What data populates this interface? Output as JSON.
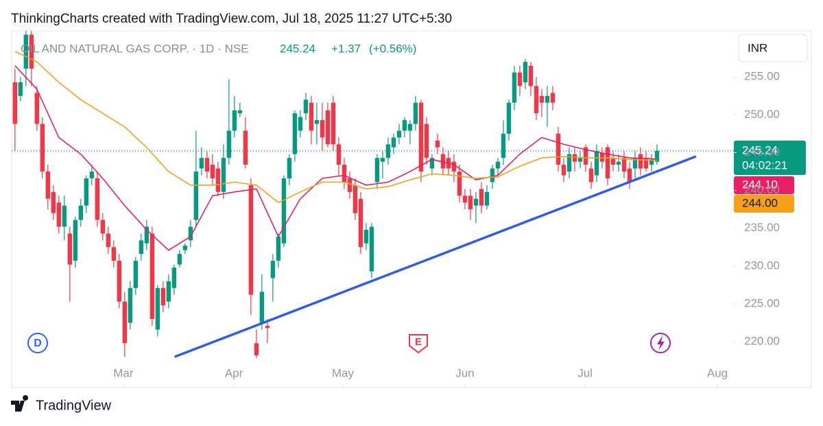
{
  "header": "ThinkingCharts created with TradingView.com, Jul 18, 2025 11:27 UTC+5:30",
  "footer": "TradingView",
  "chart_data": {
    "type": "candlestick",
    "symbol": "OIL AND NATURAL GAS CORP. · 1D · NSE",
    "last_price": 245.24,
    "change": {
      "value": 1.37,
      "label": "+1.37"
    },
    "change_pct": {
      "value": 0.56,
      "label": "(+0.56%)"
    },
    "currency": "INR",
    "countdown": "04:02:21",
    "events": [
      "D",
      "E"
    ],
    "up_color": "#089981",
    "down_color": "#f23645",
    "xlim": [
      -0.6,
      131
    ],
    "xticks": [
      {
        "value": 19.75,
        "label": "Mar"
      },
      {
        "value": 39.9,
        "label": "Apr"
      },
      {
        "value": 59.75,
        "label": "May"
      },
      {
        "value": 82,
        "label": "Jun"
      },
      {
        "value": 103.9,
        "label": "Jul"
      },
      {
        "value": 128,
        "label": "Aug"
      }
    ],
    "ylim": [
      216.2,
      261.1
    ],
    "yticks": [
      {
        "value": 220,
        "label": "220.00"
      },
      {
        "value": 225,
        "label": "225.00"
      },
      {
        "value": 230,
        "label": "230.00"
      },
      {
        "value": 235,
        "label": "235.00"
      },
      {
        "value": 240,
        "label": "240.00"
      },
      {
        "value": 245,
        "label": "245.00"
      },
      {
        "value": 250,
        "label": "250.00"
      },
      {
        "value": 255,
        "label": "255.00"
      }
    ],
    "open": [
      254.3,
      252.5,
      256.1,
      260.6,
      252.9,
      248.8,
      242.5,
      239.8,
      238.4,
      235.2,
      234.3,
      230.7,
      236.1,
      238.0,
      241.6,
      241.6,
      236.1,
      234.3,
      232.5,
      230.7,
      225.3,
      222.5,
      227.1,
      231.6,
      233.0,
      234.3,
      221.6,
      227.1,
      225.3,
      227.1,
      230.2,
      232.1,
      233.4,
      236.1,
      242.9,
      244.3,
      243.4,
      242.9,
      239.8,
      244.3,
      247.9,
      250.2,
      247.9,
      240.7,
      219.8,
      222.5,
      222.1,
      228.4,
      230.7,
      233.0,
      241.6,
      244.8,
      247.9,
      250.2,
      251.6,
      248.8,
      249.3,
      250.6,
      251.6,
      246.1,
      243.4,
      241.6,
      240.7,
      238.9,
      233.0,
      229.3,
      241.1,
      243.8,
      244.3,
      245.7,
      247.0,
      247.9,
      247.9,
      248.8,
      251.6,
      248.8,
      242.9,
      246.6,
      244.8,
      244.3,
      243.8,
      242.5,
      239.3,
      239.3,
      238.0,
      240.2,
      238.0,
      241.1,
      242.9,
      244.3,
      247.5,
      251.6,
      255.6,
      254.3,
      256.5,
      253.8,
      252.5,
      251.6,
      252.9,
      247.5,
      243.4,
      242.5,
      244.8,
      243.8,
      245.7,
      242.9,
      242.0,
      245.0,
      245.7,
      244.3,
      243.4,
      244.3,
      242.9,
      242.9,
      244.8,
      244.3,
      243.4,
      243.8
    ],
    "high": [
      256.1,
      255.0,
      261.1,
      261.1,
      253.8,
      249.7,
      243.4,
      240.7,
      239.3,
      239.3,
      235.2,
      236.5,
      238.9,
      242.0,
      243.4,
      242.5,
      237.0,
      235.2,
      233.4,
      231.6,
      226.6,
      228.0,
      231.2,
      234.3,
      236.1,
      235.2,
      227.5,
      228.0,
      228.9,
      230.2,
      232.1,
      233.0,
      236.1,
      247.9,
      245.7,
      245.2,
      244.8,
      243.8,
      246.1,
      254.7,
      252.5,
      251.6,
      249.7,
      241.6,
      221.6,
      228.9,
      223.0,
      231.6,
      234.3,
      242.0,
      244.8,
      250.6,
      250.6,
      252.9,
      252.5,
      251.6,
      251.6,
      251.6,
      252.5,
      247.0,
      244.3,
      242.5,
      241.6,
      239.8,
      235.7,
      235.7,
      244.8,
      245.2,
      247.0,
      247.5,
      248.8,
      249.7,
      249.3,
      252.5,
      252.0,
      249.7,
      244.8,
      247.5,
      245.7,
      245.2,
      244.8,
      243.4,
      240.2,
      240.2,
      239.8,
      241.1,
      240.7,
      243.4,
      244.3,
      249.3,
      252.0,
      256.5,
      256.5,
      257.4,
      257.0,
      255.0,
      253.4,
      253.8,
      253.8,
      248.4,
      244.3,
      245.7,
      245.7,
      245.2,
      246.1,
      243.8,
      246.1,
      245.7,
      246.1,
      245.2,
      244.8,
      245.2,
      243.8,
      245.2,
      245.7,
      245.2,
      244.8,
      246.1
    ],
    "low": [
      245.2,
      251.8,
      253.8,
      253.8,
      247.9,
      241.6,
      237.5,
      236.1,
      234.3,
      233.4,
      225.3,
      229.8,
      235.2,
      237.0,
      240.7,
      235.2,
      233.4,
      231.6,
      229.8,
      224.4,
      218.0,
      221.6,
      226.2,
      230.7,
      232.1,
      222.1,
      220.7,
      223.9,
      224.4,
      226.2,
      229.8,
      231.6,
      232.5,
      235.2,
      242.0,
      241.6,
      240.7,
      239.3,
      238.9,
      243.4,
      247.0,
      249.7,
      242.9,
      223.5,
      217.8,
      221.6,
      219.8,
      225.3,
      229.8,
      232.5,
      240.7,
      243.8,
      247.0,
      249.3,
      246.1,
      246.1,
      245.2,
      245.7,
      245.2,
      242.0,
      240.2,
      238.9,
      236.1,
      231.6,
      232.1,
      228.4,
      240.2,
      241.6,
      243.4,
      244.8,
      246.1,
      247.0,
      246.1,
      247.9,
      241.1,
      243.4,
      242.0,
      244.8,
      242.0,
      242.0,
      241.1,
      238.4,
      237.5,
      236.1,
      235.7,
      237.0,
      237.5,
      240.2,
      242.0,
      243.4,
      246.6,
      250.6,
      252.5,
      253.4,
      252.5,
      249.3,
      249.7,
      248.4,
      250.6,
      242.5,
      241.1,
      241.6,
      242.5,
      242.9,
      242.5,
      240.2,
      241.1,
      242.9,
      240.7,
      242.5,
      242.5,
      241.6,
      240.2,
      241.6,
      242.0,
      242.5,
      242.5,
      243.4
    ],
    "close": [
      248.8,
      254.3,
      260.6,
      256.1,
      248.8,
      242.5,
      238.9,
      237.0,
      235.2,
      238.0,
      230.2,
      236.1,
      238.0,
      241.6,
      242.5,
      236.1,
      234.3,
      232.5,
      230.7,
      225.3,
      219.8,
      227.1,
      230.7,
      233.4,
      235.2,
      223.0,
      227.1,
      224.8,
      228.0,
      229.8,
      231.6,
      232.7,
      235.2,
      242.5,
      244.3,
      242.5,
      241.6,
      239.8,
      244.3,
      247.9,
      250.6,
      250.6,
      243.4,
      226.2,
      218.2,
      226.6,
      221.8,
      230.7,
      233.9,
      241.6,
      244.3,
      250.2,
      249.7,
      252.0,
      247.9,
      249.3,
      247.0,
      246.1,
      246.1,
      243.4,
      241.1,
      239.8,
      237.0,
      232.5,
      234.8,
      235.2,
      244.3,
      244.3,
      246.1,
      247.0,
      247.9,
      249.3,
      248.8,
      251.6,
      242.5,
      244.3,
      244.3,
      245.7,
      242.9,
      242.9,
      242.5,
      239.3,
      238.4,
      237.5,
      238.9,
      238.0,
      239.8,
      242.9,
      243.8,
      247.5,
      251.6,
      255.6,
      253.8,
      257.0,
      253.8,
      250.2,
      251.6,
      252.5,
      251.6,
      243.4,
      242.0,
      244.8,
      243.8,
      244.3,
      243.4,
      241.1,
      245.2,
      243.8,
      241.6,
      243.4,
      243.8,
      242.5,
      241.1,
      244.3,
      242.9,
      242.9,
      244.1,
      245.24
    ],
    "series": [
      {
        "color": "#e91e63",
        "label": "244.10",
        "x": [
          0,
          4,
          8,
          12,
          16,
          20,
          24,
          28,
          32,
          36,
          40,
          44,
          48,
          52,
          56,
          60,
          64,
          68,
          72,
          76,
          80,
          84,
          88,
          92,
          96,
          100,
          104,
          108,
          112,
          116,
          117
        ],
        "values": [
          256.5,
          253.4,
          247.0,
          244.8,
          241.6,
          238.0,
          234.8,
          232.1,
          233.9,
          239.3,
          239.8,
          240.2,
          233.9,
          238.9,
          241.6,
          242.0,
          240.7,
          241.1,
          242.5,
          244.1,
          243.4,
          241.4,
          242.0,
          244.8,
          247.0,
          246.1,
          245.4,
          244.8,
          244.3,
          244.2,
          244.1
        ]
      },
      {
        "color": "#f5a11a",
        "label": "244.00",
        "x": [
          0,
          4,
          8,
          12,
          16,
          20,
          24,
          28,
          32,
          36,
          40,
          44,
          48,
          52,
          56,
          60,
          64,
          68,
          72,
          76,
          80,
          84,
          88,
          92,
          96,
          100,
          104,
          108,
          112,
          116,
          117
        ],
        "values": [
          258.4,
          257.0,
          254.3,
          252.0,
          250.2,
          248.4,
          245.7,
          242.5,
          240.7,
          240.7,
          241.1,
          240.7,
          238.4,
          239.8,
          241.1,
          241.1,
          240.2,
          240.5,
          241.4,
          242.2,
          242.0,
          241.6,
          241.8,
          243.2,
          244.3,
          244.5,
          244.3,
          244.3,
          244.1,
          244.0,
          244.0
        ]
      }
    ],
    "trendline": {
      "color": "#2f5be6",
      "x": [
        29.1,
        124.1
      ],
      "values": [
        218.0,
        244.5
      ]
    }
  }
}
